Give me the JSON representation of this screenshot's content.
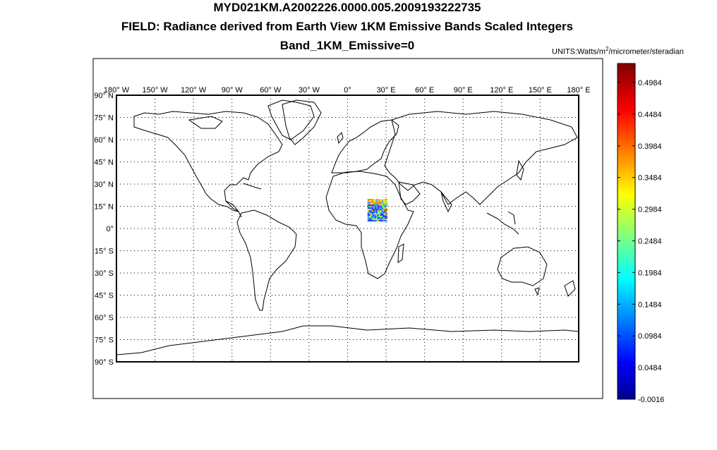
{
  "figure": {
    "title_line1": "MYD021KM.A2002226.0000.005.2009193222735",
    "title_line2": "FIELD: Radiance derived from Earth View 1KM Emissive Bands Scaled Integers",
    "title_line3": "Band_1KM_Emissive=0",
    "units_prefix": "UNITS:Watts/m",
    "units_exponent": "2",
    "units_suffix": "/micrometer/steradian"
  },
  "map": {
    "projection": "equirectangular",
    "lon_range": [
      -180,
      180
    ],
    "lat_range": [
      -90,
      90
    ],
    "gridlines": "dotted",
    "lon_ticks": [
      "180° W",
      "150° W",
      "120° W",
      "90° W",
      "60° W",
      "30° W",
      "0°",
      "30° E",
      "60° E",
      "90° E",
      "120° E",
      "150° E",
      "180° E"
    ],
    "lat_ticks": [
      "90° N",
      "75° N",
      "60° N",
      "45° N",
      "30° N",
      "15° N",
      "0°",
      "15° S",
      "30° S",
      "45° S",
      "60° S",
      "75° S",
      "90° S"
    ],
    "coastline_color": "#000000",
    "swath": {
      "description_location": "granule over Sudan / Chad, north-central Africa",
      "lon_range": [
        15,
        31
      ],
      "lat_range": [
        5,
        20
      ],
      "dominant_colors": [
        "#1a3cff",
        "#2aa8ff",
        "#66ff66",
        "#ffe000",
        "#ff8800"
      ]
    }
  },
  "colorbar": {
    "min": -0.0016,
    "max": 0.5284,
    "tick_labels": [
      "0.4984",
      "0.4484",
      "0.3984",
      "0.3484",
      "0.2984",
      "0.2484",
      "0.1984",
      "0.1484",
      "0.0984",
      "0.0484",
      "-0.0016"
    ],
    "tick_values": [
      0.4984,
      0.4484,
      0.3984,
      0.3484,
      0.2984,
      0.2484,
      0.1984,
      0.1484,
      0.0984,
      0.0484,
      -0.0016
    ],
    "colormap": "jet"
  }
}
